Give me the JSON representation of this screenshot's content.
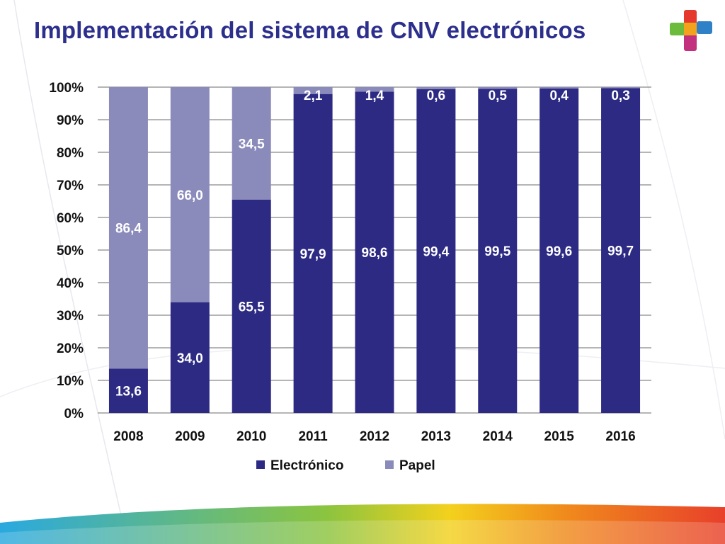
{
  "slide": {
    "title": "Implementación del sistema de CNV electrónicos",
    "logo_icon": "health-cross-logo-icon"
  },
  "colors": {
    "title": "#2c2f8c",
    "electronico": "#2d2a84",
    "papel": "#8b8bbb",
    "grid": "#6b6b6b",
    "axis_text": "#111111"
  },
  "chart_data": {
    "type": "bar",
    "stacked": true,
    "percent_stacked": true,
    "categories": [
      "2008",
      "2009",
      "2010",
      "2011",
      "2012",
      "2013",
      "2014",
      "2015",
      "2016"
    ],
    "series": [
      {
        "name": "Electrónico",
        "values": [
          13.6,
          34.0,
          65.5,
          97.9,
          98.6,
          99.4,
          99.5,
          99.6,
          99.7
        ],
        "labels": [
          "13,6",
          "34,0",
          "65,5",
          "97,9",
          "98,6",
          "99,4",
          "99,5",
          "99,6",
          "99,7"
        ]
      },
      {
        "name": "Papel",
        "values": [
          86.4,
          66.0,
          34.5,
          2.1,
          1.4,
          0.6,
          0.5,
          0.4,
          0.3
        ],
        "labels": [
          "86,4",
          "66,0",
          "34,5",
          "2,1",
          "1,4",
          "0,6",
          "0,5",
          "0,4",
          "0,3"
        ]
      }
    ],
    "yticks": [
      "0%",
      "10%",
      "20%",
      "30%",
      "40%",
      "50%",
      "60%",
      "70%",
      "80%",
      "90%",
      "100%"
    ],
    "ylim": [
      0,
      100
    ],
    "grid": true,
    "legend_position": "bottom"
  }
}
